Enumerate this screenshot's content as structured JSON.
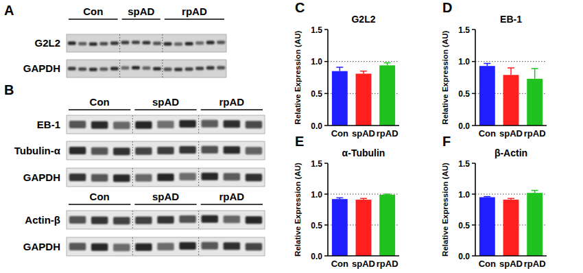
{
  "chart_data": [
    {
      "type": "bar",
      "annotation": "C",
      "title": "G2L2",
      "y_label": "Relative Expression (AU)",
      "categories": [
        "Con",
        "spAD",
        "rpAD"
      ],
      "values": [
        0.85,
        0.81,
        0.94
      ],
      "errors": [
        0.06,
        0.04,
        0.04
      ],
      "colors": [
        "#1f1fff",
        "#ff1f1f",
        "#1fc21f"
      ],
      "ylim": [
        0,
        1.5
      ],
      "yticks": [
        {
          "value": 0,
          "label": "0.0"
        },
        {
          "value": 0.5,
          "label": "0.5"
        },
        {
          "value": 1,
          "label": "1.0"
        },
        {
          "value": 1.5,
          "label": "1.5"
        }
      ],
      "grid": true
    },
    {
      "type": "bar",
      "annotation": "D",
      "title": "EB-1",
      "y_label": "Relative Expression (AU)",
      "categories": [
        "Con",
        "spAD",
        "rpAD"
      ],
      "values": [
        0.93,
        0.79,
        0.73
      ],
      "errors": [
        0.04,
        0.11,
        0.16
      ],
      "colors": [
        "#1f1fff",
        "#ff1f1f",
        "#1fc21f"
      ],
      "ylim": [
        0,
        1.5
      ],
      "yticks": [
        {
          "value": 0,
          "label": "0.0"
        },
        {
          "value": 0.5,
          "label": "0.5"
        },
        {
          "value": 1,
          "label": "1.0"
        },
        {
          "value": 1.5,
          "label": "1.5"
        }
      ],
      "grid": true
    },
    {
      "type": "bar",
      "annotation": "E",
      "title": "α-Tubulin",
      "y_label": "Relative Expression (AU)",
      "categories": [
        "Con",
        "spAD",
        "rpAD"
      ],
      "values": [
        0.92,
        0.91,
        0.99
      ],
      "errors": [
        0.02,
        0.02,
        0.01
      ],
      "colors": [
        "#1f1fff",
        "#ff1f1f",
        "#1fc21f"
      ],
      "ylim": [
        0,
        1.5
      ],
      "yticks": [
        {
          "value": 0,
          "label": "0.0"
        },
        {
          "value": 0.5,
          "label": "0.5"
        },
        {
          "value": 1,
          "label": "1.0"
        },
        {
          "value": 1.5,
          "label": "1.5"
        }
      ],
      "grid": true
    },
    {
      "type": "bar",
      "annotation": "F",
      "title": "β-Actin",
      "y_label": "Relative Expression (AU)",
      "categories": [
        "Con",
        "spAD",
        "rpAD"
      ],
      "values": [
        0.95,
        0.91,
        1.02
      ],
      "errors": [
        0.01,
        0.02,
        0.04
      ],
      "colors": [
        "#1f1fff",
        "#ff1f1f",
        "#1fc21f"
      ],
      "ylim": [
        0,
        1.5
      ],
      "yticks": [
        {
          "value": 0,
          "label": "0.0"
        },
        {
          "value": 0.5,
          "label": "0.5"
        },
        {
          "value": 1,
          "label": "1.0"
        },
        {
          "value": 1.5,
          "label": "1.5"
        }
      ],
      "grid": true
    }
  ],
  "blots": [
    {
      "panel": "A",
      "sections": [
        {
          "groups": [
            "Con",
            "spAD",
            "rpAD"
          ],
          "rows": [
            "G2L2",
            "GAPDH"
          ]
        }
      ]
    },
    {
      "panel": "B",
      "sections": [
        {
          "groups": [
            "Con",
            "spAD",
            "rpAD"
          ],
          "rows": [
            "EB-1",
            "Tubulin-α",
            "GAPDH"
          ]
        },
        {
          "groups": [
            "Con",
            "spAD",
            "rpAD"
          ],
          "rows": [
            "Actin-β",
            "GAPDH"
          ]
        }
      ]
    }
  ]
}
